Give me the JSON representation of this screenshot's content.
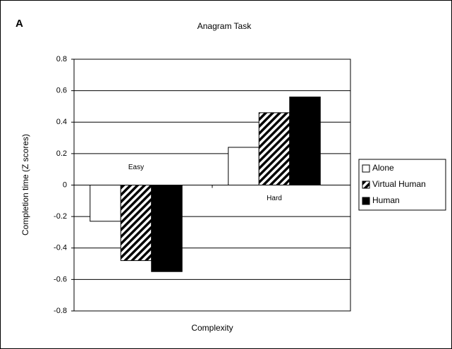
{
  "chart_data": {
    "type": "bar",
    "panel_label": "A",
    "title": "Anagram Task",
    "x_label": "Complexity",
    "y_label": "Completion time (Z scores)",
    "categories": [
      "Easy",
      "Hard"
    ],
    "series": [
      {
        "name": "Alone",
        "color": "#ffffff",
        "values": [
          -0.23,
          0.24
        ]
      },
      {
        "name": "Virtual Human",
        "color": "#000000",
        "pattern": "diagonal",
        "values": [
          -0.48,
          0.46
        ]
      },
      {
        "name": "Human",
        "color": "#000000",
        "values": [
          -0.55,
          0.56
        ]
      }
    ],
    "ylim": [
      -0.8,
      0.8
    ],
    "yticks": [
      -0.8,
      -0.6,
      -0.4,
      -0.2,
      0,
      0.2,
      0.4,
      0.6,
      0.8
    ],
    "grid": true,
    "legend": "right"
  }
}
